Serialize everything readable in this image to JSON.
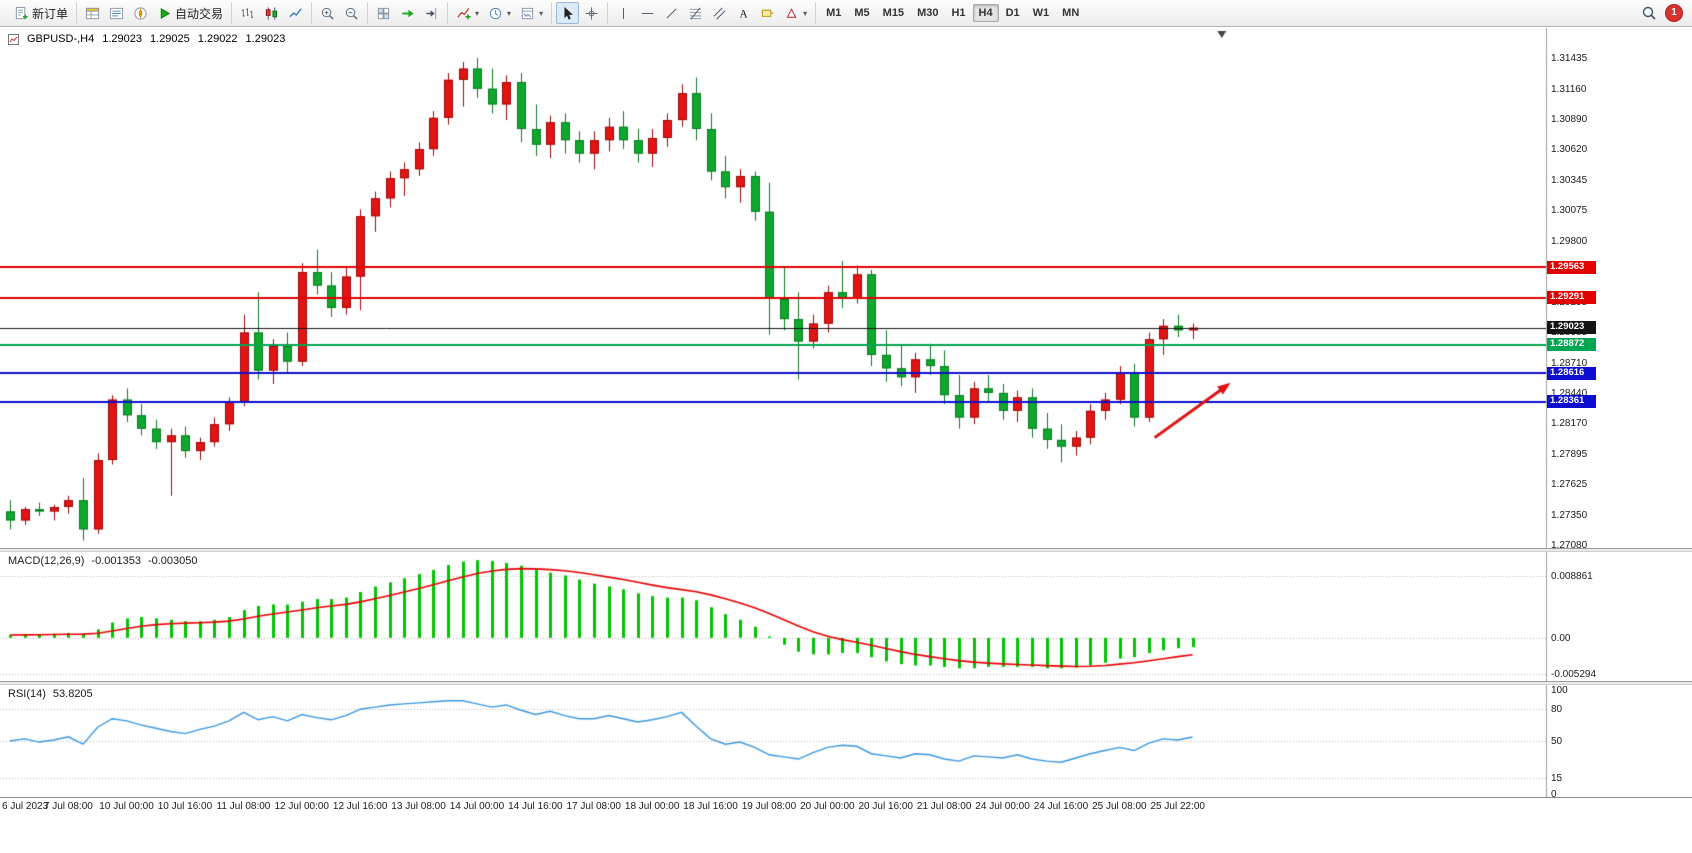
{
  "toolbar": {
    "groups": [
      {
        "name": "order",
        "items": [
          {
            "name": "new-order-button",
            "icon": "new-order",
            "label": "新订单"
          }
        ]
      },
      {
        "name": "panels",
        "items": [
          {
            "name": "market-watch-button",
            "icon": "market-watch"
          },
          {
            "name": "data-window-button",
            "icon": "data-window"
          },
          {
            "name": "navigator-button",
            "icon": "navigator"
          },
          {
            "name": "auto-trading-button",
            "icon": "auto-trading",
            "label": "自动交易"
          }
        ]
      },
      {
        "name": "chart-type",
        "items": [
          {
            "name": "bar-chart-button",
            "icon": "bar-chart"
          },
          {
            "name": "candle-chart-button",
            "icon": "candle-chart"
          },
          {
            "name": "line-chart-button",
            "icon": "line-chart"
          }
        ]
      },
      {
        "name": "zoom",
        "items": [
          {
            "name": "zoom-in-button",
            "icon": "zoom-in"
          },
          {
            "name": "zoom-out-button",
            "icon": "zoom-out"
          }
        ]
      },
      {
        "name": "arrange",
        "items": [
          {
            "name": "tile-windows-button",
            "icon": "tile-windows"
          },
          {
            "name": "auto-scroll-button",
            "icon": "auto-scroll"
          },
          {
            "name": "chart-shift-button",
            "icon": "chart-shift"
          }
        ]
      },
      {
        "name": "insert",
        "items": [
          {
            "name": "indicators-button",
            "icon": "indicators",
            "caret": true
          },
          {
            "name": "periods-button",
            "icon": "periods",
            "caret": true
          },
          {
            "name": "templates-button",
            "icon": "templates",
            "caret": true
          }
        ]
      },
      {
        "name": "pointer",
        "items": [
          {
            "name": "cursor-button",
            "icon": "cursor",
            "active": true
          },
          {
            "name": "crosshair-button",
            "icon": "crosshair"
          }
        ]
      },
      {
        "name": "draw",
        "items": [
          {
            "name": "vertical-line-button",
            "icon": "vline"
          },
          {
            "name": "horizontal-line-button",
            "icon": "hline"
          },
          {
            "name": "trendline-button",
            "icon": "tline"
          },
          {
            "name": "fibonacci-button",
            "icon": "fibo"
          },
          {
            "name": "channel-button",
            "icon": "channel"
          },
          {
            "name": "text-button",
            "icon": "text"
          },
          {
            "name": "label-button",
            "icon": "label"
          },
          {
            "name": "shapes-button",
            "icon": "shapes",
            "caret": true
          }
        ]
      }
    ],
    "timeframes": {
      "items": [
        "M1",
        "M5",
        "M15",
        "M30",
        "H1",
        "H4",
        "D1",
        "W1",
        "MN"
      ],
      "active": "H4"
    },
    "right": {
      "notification_count": "1"
    }
  },
  "chart": {
    "symbol_label": "GBPUSD-,H4",
    "open": "1.29023",
    "high": "1.29025",
    "low": "1.29022",
    "close": "1.29023"
  },
  "chart_data": [
    {
      "type": "candlestick",
      "title": "GBPUSD- H4",
      "bars_per_label": 4,
      "x_labels": [
        "6 Jul 2023",
        "7 Jul 08:00",
        "10 Jul 00:00",
        "10 Jul 16:00",
        "11 Jul 08:00",
        "12 Jul 00:00",
        "12 Jul 16:00",
        "13 Jul 08:00",
        "14 Jul 00:00",
        "14 Jul 16:00",
        "17 Jul 08:00",
        "18 Jul 00:00",
        "18 Jul 16:00",
        "19 Jul 08:00",
        "20 Jul 00:00",
        "20 Jul 16:00",
        "21 Jul 08:00",
        "24 Jul 00:00",
        "24 Jul 16:00",
        "25 Jul 08:00",
        "25 Jul 22:00"
      ],
      "ylim": [
        1.2708,
        1.31435
      ],
      "y_ticks": [
        "1.31435",
        "1.31160",
        "1.30890",
        "1.30620",
        "1.30345",
        "1.30075",
        "1.29800",
        "1.29530",
        "1.29255",
        "1.28985",
        "1.28710",
        "1.28440",
        "1.28170",
        "1.27895",
        "1.27625",
        "1.27350",
        "1.27080"
      ],
      "ohlc": [
        [
          1.2738,
          1.2748,
          1.2722,
          1.273
        ],
        [
          1.273,
          1.2742,
          1.2726,
          1.274
        ],
        [
          1.274,
          1.2746,
          1.2734,
          1.2738
        ],
        [
          1.2738,
          1.2744,
          1.273,
          1.2742
        ],
        [
          1.2742,
          1.2752,
          1.2736,
          1.2748
        ],
        [
          1.2748,
          1.2768,
          1.2712,
          1.2722
        ],
        [
          1.2722,
          1.279,
          1.2718,
          1.2784
        ],
        [
          1.2784,
          1.2842,
          1.278,
          1.2838
        ],
        [
          1.2838,
          1.2848,
          1.2818,
          1.2824
        ],
        [
          1.2824,
          1.2834,
          1.2806,
          1.2812
        ],
        [
          1.2812,
          1.282,
          1.2794,
          1.28
        ],
        [
          1.28,
          1.2812,
          1.2752,
          1.2806
        ],
        [
          1.2806,
          1.2814,
          1.2786,
          1.2792
        ],
        [
          1.2792,
          1.2804,
          1.2784,
          1.28
        ],
        [
          1.28,
          1.2822,
          1.2796,
          1.2816
        ],
        [
          1.2816,
          1.284,
          1.281,
          1.2836
        ],
        [
          1.2836,
          1.2914,
          1.2832,
          1.2898
        ],
        [
          1.2898,
          1.2934,
          1.2856,
          1.2864
        ],
        [
          1.2864,
          1.2892,
          1.2852,
          1.2886
        ],
        [
          1.2886,
          1.2898,
          1.2862,
          1.2872
        ],
        [
          1.2872,
          1.296,
          1.2868,
          1.2952
        ],
        [
          1.2952,
          1.2972,
          1.2932,
          1.294
        ],
        [
          1.294,
          1.2952,
          1.2912,
          1.292
        ],
        [
          1.292,
          1.2956,
          1.2914,
          1.2948
        ],
        [
          1.2948,
          1.3008,
          1.2918,
          1.3002
        ],
        [
          1.3002,
          1.3024,
          1.2988,
          1.3018
        ],
        [
          1.3018,
          1.3042,
          1.301,
          1.3036
        ],
        [
          1.3036,
          1.305,
          1.302,
          1.3044
        ],
        [
          1.3044,
          1.3068,
          1.3038,
          1.3062
        ],
        [
          1.3062,
          1.3096,
          1.3056,
          1.309
        ],
        [
          1.309,
          1.313,
          1.3084,
          1.3124
        ],
        [
          1.3124,
          1.314,
          1.31,
          1.3134
        ],
        [
          1.3134,
          1.31435,
          1.3108,
          1.3116
        ],
        [
          1.3116,
          1.3134,
          1.3094,
          1.3102
        ],
        [
          1.3102,
          1.3128,
          1.3088,
          1.3122
        ],
        [
          1.3122,
          1.313,
          1.3068,
          1.308
        ],
        [
          1.308,
          1.3102,
          1.3056,
          1.3066
        ],
        [
          1.3066,
          1.3092,
          1.3054,
          1.3086
        ],
        [
          1.3086,
          1.3094,
          1.3058,
          1.307
        ],
        [
          1.307,
          1.3078,
          1.305,
          1.3058
        ],
        [
          1.3058,
          1.3078,
          1.3044,
          1.307
        ],
        [
          1.307,
          1.309,
          1.306,
          1.3082
        ],
        [
          1.3082,
          1.3096,
          1.3062,
          1.307
        ],
        [
          1.307,
          1.308,
          1.305,
          1.3058
        ],
        [
          1.3058,
          1.308,
          1.3046,
          1.3072
        ],
        [
          1.3072,
          1.3094,
          1.3064,
          1.3088
        ],
        [
          1.3088,
          1.312,
          1.3082,
          1.3112
        ],
        [
          1.3112,
          1.3126,
          1.307,
          1.308
        ],
        [
          1.308,
          1.3094,
          1.3034,
          1.3042
        ],
        [
          1.3042,
          1.3056,
          1.3018,
          1.3028
        ],
        [
          1.3028,
          1.3044,
          1.3014,
          1.3038
        ],
        [
          1.3038,
          1.3042,
          1.2998,
          1.3006
        ],
        [
          1.3006,
          1.3032,
          1.2896,
          1.2928
        ],
        [
          1.2928,
          1.2956,
          1.29,
          1.291
        ],
        [
          1.291,
          1.2934,
          1.2856,
          1.289
        ],
        [
          1.289,
          1.2914,
          1.2884,
          1.2906
        ],
        [
          1.2906,
          1.294,
          1.2898,
          1.2934
        ],
        [
          1.2934,
          1.2962,
          1.292,
          1.2928
        ],
        [
          1.2928,
          1.2958,
          1.2924,
          1.295
        ],
        [
          1.295,
          1.2954,
          1.2868,
          1.2878
        ],
        [
          1.2878,
          1.29,
          1.2854,
          1.2866
        ],
        [
          1.2866,
          1.2886,
          1.285,
          1.2858
        ],
        [
          1.2858,
          1.288,
          1.2844,
          1.2874
        ],
        [
          1.2874,
          1.2888,
          1.286,
          1.2868
        ],
        [
          1.2868,
          1.2882,
          1.2834,
          1.2842
        ],
        [
          1.2842,
          1.286,
          1.2812,
          1.2822
        ],
        [
          1.2822,
          1.2854,
          1.2816,
          1.2848
        ],
        [
          1.2848,
          1.286,
          1.2836,
          1.2844
        ],
        [
          1.2844,
          1.2852,
          1.282,
          1.2828
        ],
        [
          1.2828,
          1.2846,
          1.2818,
          1.284
        ],
        [
          1.284,
          1.2848,
          1.2804,
          1.2812
        ],
        [
          1.2812,
          1.2826,
          1.2794,
          1.2802
        ],
        [
          1.2802,
          1.2816,
          1.2782,
          1.2796
        ],
        [
          1.2796,
          1.281,
          1.2788,
          1.2804
        ],
        [
          1.2804,
          1.2834,
          1.2798,
          1.2828
        ],
        [
          1.2828,
          1.2844,
          1.282,
          1.2838
        ],
        [
          1.2838,
          1.2868,
          1.2834,
          1.2862
        ],
        [
          1.2862,
          1.287,
          1.2814,
          1.2822
        ],
        [
          1.2822,
          1.2898,
          1.2818,
          1.2892
        ],
        [
          1.2892,
          1.291,
          1.2878,
          1.2904
        ],
        [
          1.2904,
          1.2914,
          1.2894,
          1.29
        ],
        [
          1.29,
          1.2906,
          1.2892,
          1.29023
        ]
      ],
      "hlines": [
        {
          "price": 1.29563,
          "label": "1.29563",
          "color": "#e00000",
          "width": 2,
          "role": "resistance"
        },
        {
          "price": 1.29291,
          "label": "1.29291",
          "color": "#e00000",
          "width": 2,
          "role": "resistance"
        },
        {
          "price": 1.28872,
          "label": "1.28872",
          "color": "#00a651",
          "width": 2,
          "role": "support"
        },
        {
          "price": 1.28616,
          "label": "1.28616",
          "color": "#0d0dd0",
          "width": 2,
          "role": "support"
        },
        {
          "price": 1.28361,
          "label": "1.28361",
          "color": "#0d0dd0",
          "width": 2,
          "role": "support"
        },
        {
          "price": 1.29023,
          "label": "1.29023",
          "color": "#141414",
          "width": 1,
          "role": "bid-line"
        }
      ],
      "annotations": [
        {
          "type": "arrow",
          "from_bar": 78.4,
          "from_price": 1.2804,
          "to_bar": 83.6,
          "to_price": 1.2853,
          "color": "#dd1111",
          "width": 3
        }
      ],
      "shift_marker_bar": 83.0,
      "colors": {
        "up": "#e31414",
        "up_border": "#9e0808",
        "down": "#0fa82f",
        "down_border": "#0a7a20"
      }
    },
    {
      "type": "bar+line",
      "title": "MACD(12,26,9)",
      "values_label": [
        "-0.001353",
        "-0.003050"
      ],
      "ylim": [
        -0.0058,
        0.0118
      ],
      "y_ticks": [
        {
          "v": 0.008861,
          "label": "0.008861"
        },
        {
          "v": 0,
          "label": "0.00"
        },
        {
          "v": -0.005294,
          "label": "-0.005294"
        }
      ],
      "signal_period": 9,
      "histogram": [
        0.0004,
        0.0005,
        0.0005,
        0.0006,
        0.0007,
        0.0006,
        0.0012,
        0.0022,
        0.0028,
        0.003,
        0.0028,
        0.0026,
        0.0024,
        0.0024,
        0.0026,
        0.003,
        0.004,
        0.0046,
        0.0048,
        0.0048,
        0.0052,
        0.0056,
        0.0056,
        0.0058,
        0.0066,
        0.0074,
        0.008,
        0.0086,
        0.0092,
        0.0098,
        0.0105,
        0.011,
        0.0112,
        0.0111,
        0.0108,
        0.0104,
        0.0098,
        0.0094,
        0.009,
        0.0084,
        0.0078,
        0.0074,
        0.007,
        0.0064,
        0.006,
        0.0058,
        0.0058,
        0.0054,
        0.0044,
        0.0034,
        0.0026,
        0.0016,
        0.0002,
        -0.001,
        -0.002,
        -0.0024,
        -0.0024,
        -0.0022,
        -0.0022,
        -0.0028,
        -0.0034,
        -0.0038,
        -0.004,
        -0.004,
        -0.0042,
        -0.0044,
        -0.0044,
        -0.0042,
        -0.0042,
        -0.0042,
        -0.0042,
        -0.0044,
        -0.0044,
        -0.0043,
        -0.004,
        -0.0036,
        -0.003,
        -0.0028,
        -0.0022,
        -0.0018,
        -0.0015,
        -0.001353
      ],
      "colors": {
        "histogram": "#00c400",
        "signal": "#e80000"
      }
    },
    {
      "type": "line",
      "title": "RSI(14)",
      "value_label": "53.8205",
      "ylim": [
        0,
        100
      ],
      "levels": [
        80,
        50,
        15
      ],
      "y_ticks": [
        {
          "v": 100,
          "label": "100"
        },
        {
          "v": 80,
          "label": "80"
        },
        {
          "v": 50,
          "label": "50"
        },
        {
          "v": 15,
          "label": "15"
        },
        {
          "v": 0,
          "label": "0"
        }
      ],
      "values": [
        50,
        52,
        49,
        51,
        54,
        47,
        63,
        71,
        69,
        65,
        62,
        59,
        57,
        61,
        64,
        69,
        77,
        70,
        73,
        69,
        75,
        72,
        70,
        74,
        80,
        82,
        84,
        85,
        86,
        87,
        88,
        88,
        85,
        82,
        84,
        79,
        75,
        78,
        74,
        71,
        71,
        74,
        71,
        68,
        70,
        73,
        77,
        64,
        52,
        47,
        49,
        44,
        37,
        35,
        33,
        39,
        44,
        46,
        45,
        38,
        36,
        34,
        38,
        37,
        33,
        31,
        36,
        35,
        34,
        37,
        33,
        31,
        30,
        34,
        38,
        41,
        44,
        41,
        48,
        52,
        51,
        53.82
      ],
      "color": "#3a96e0"
    }
  ]
}
